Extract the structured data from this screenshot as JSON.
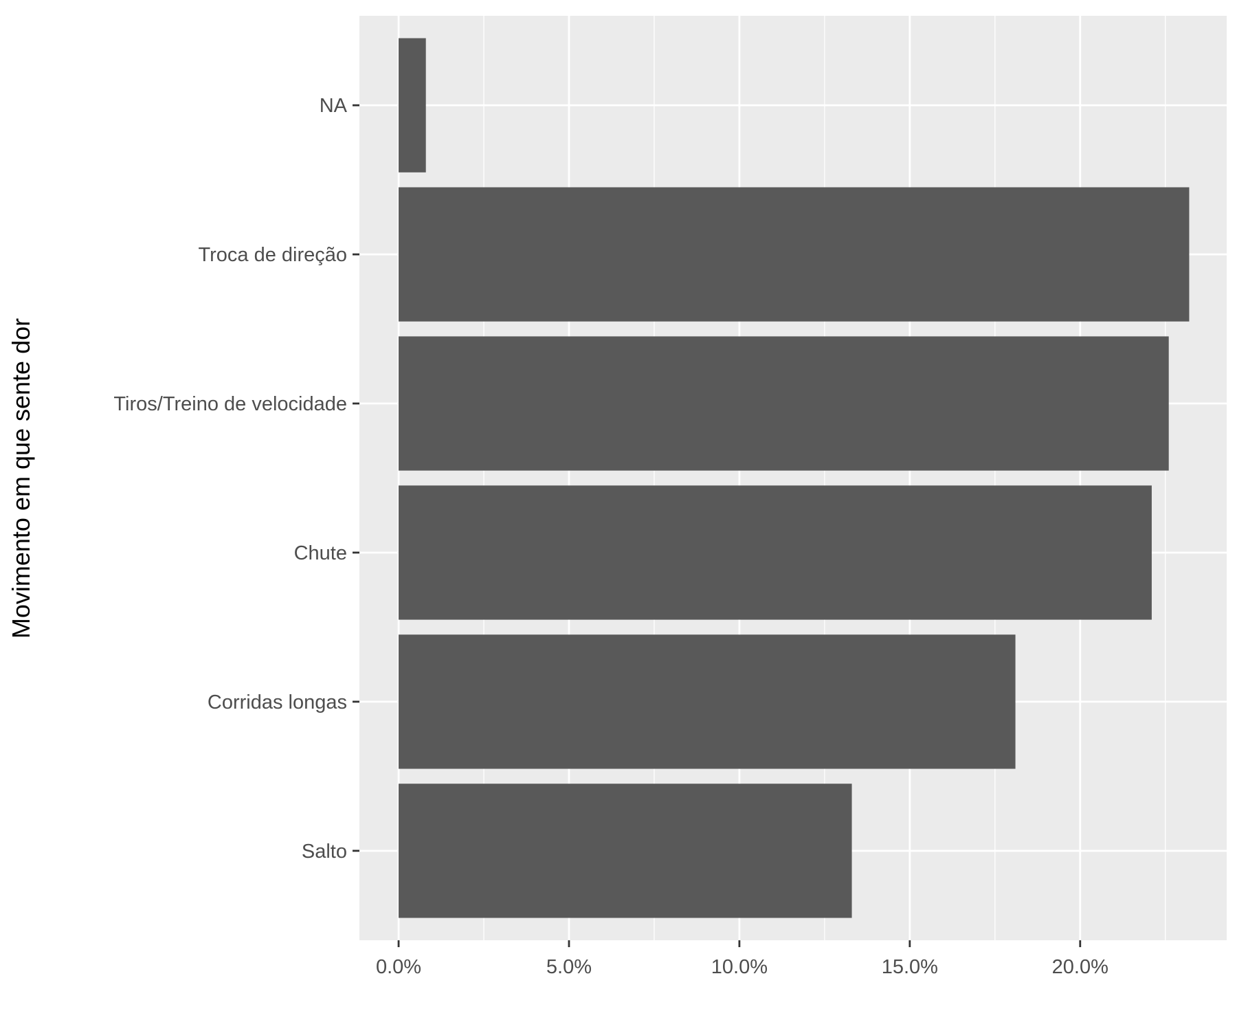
{
  "chart_data": {
    "type": "bar",
    "orientation": "horizontal",
    "title": "",
    "xlabel": "",
    "ylabel": "Movimento em que sente dor",
    "categories": [
      "Salto",
      "Corridas longas",
      "Chute",
      "Tiros/Treino de velocidade",
      "Troca de direção",
      "NA"
    ],
    "values": [
      13.3,
      18.1,
      22.1,
      22.6,
      23.2,
      0.8
    ],
    "xlim": [
      -1.15,
      24.3
    ],
    "x_ticks": [
      0,
      5,
      10,
      15,
      20
    ],
    "x_tick_labels": [
      "0.0%",
      "5.0%",
      "10.0%",
      "15.0%",
      "20.0%"
    ],
    "grid": true,
    "legend": "none",
    "colors": {
      "bar": "#595959",
      "panel": "#ebebeb",
      "grid": "#ffffff",
      "tick": "#333333"
    }
  }
}
